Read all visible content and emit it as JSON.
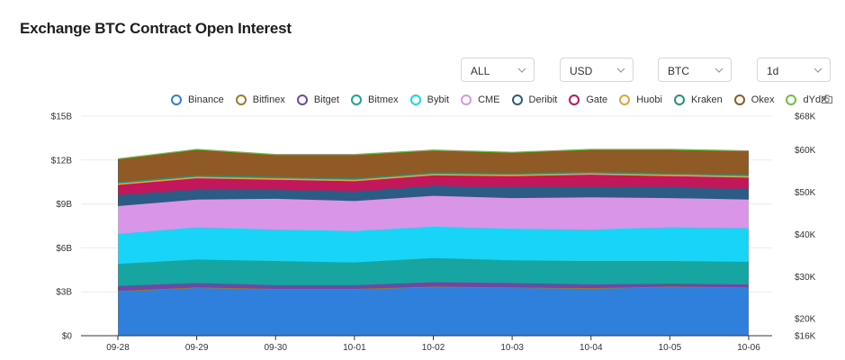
{
  "title": "Exchange BTC Contract Open Interest",
  "filters": [
    {
      "value": "ALL"
    },
    {
      "value": "USD"
    },
    {
      "value": "BTC"
    },
    {
      "value": "1d"
    }
  ],
  "icons": {
    "chevron": "chevron-down-icon",
    "camera": "camera-icon"
  },
  "chart_data": {
    "type": "area",
    "stacked": true,
    "categories": [
      "09-28",
      "09-29",
      "09-30",
      "10-01",
      "10-02",
      "10-03",
      "10-04",
      "10-05",
      "10-06"
    ],
    "y_left": {
      "ticks": [
        "$0",
        "$3B",
        "$6B",
        "$9B",
        "$12B",
        "$15B"
      ],
      "range": [
        0,
        15
      ],
      "unit": "B USD"
    },
    "y_right": {
      "ticks": [
        "$16K",
        "$20K",
        "$30K",
        "$40K",
        "$50K",
        "$60K",
        "$68K"
      ],
      "range": [
        16,
        68
      ],
      "unit": "K USD"
    },
    "legend_position": "top",
    "series": [
      {
        "name": "Binance",
        "color": "#2f7fdd",
        "values": [
          3.0,
          3.25,
          3.15,
          3.15,
          3.3,
          3.25,
          3.2,
          3.3,
          3.25
        ]
      },
      {
        "name": "Bitfinex",
        "color": "#a0782f",
        "values": [
          0.05,
          0.05,
          0.05,
          0.05,
          0.05,
          0.05,
          0.05,
          0.05,
          0.05
        ]
      },
      {
        "name": "Bitget",
        "color": "#6a4aa3",
        "values": [
          0.35,
          0.3,
          0.25,
          0.25,
          0.3,
          0.3,
          0.25,
          0.2,
          0.2
        ]
      },
      {
        "name": "Bitmex",
        "color": "#16a5a1",
        "values": [
          1.5,
          1.6,
          1.65,
          1.55,
          1.65,
          1.55,
          1.6,
          1.55,
          1.55
        ]
      },
      {
        "name": "Bybit",
        "color": "#18d4f6",
        "values": [
          2.05,
          2.2,
          2.15,
          2.15,
          2.15,
          2.15,
          2.15,
          2.3,
          2.3
        ]
      },
      {
        "name": "CME",
        "color": "#d996e8",
        "values": [
          1.9,
          1.9,
          2.1,
          2.05,
          2.1,
          2.1,
          2.2,
          2.0,
          1.95
        ]
      },
      {
        "name": "Deribit",
        "color": "#2c5c85",
        "values": [
          0.75,
          0.7,
          0.65,
          0.65,
          0.7,
          0.75,
          0.75,
          0.75,
          0.75
        ]
      },
      {
        "name": "Gate",
        "color": "#c2185b",
        "values": [
          0.7,
          0.75,
          0.65,
          0.7,
          0.7,
          0.75,
          0.8,
          0.75,
          0.75
        ]
      },
      {
        "name": "Huobi",
        "color": "#e8a13c",
        "values": [
          0.1,
          0.1,
          0.1,
          0.1,
          0.1,
          0.1,
          0.1,
          0.1,
          0.1
        ]
      },
      {
        "name": "Kraken",
        "color": "#2e8f7a",
        "values": [
          0.1,
          0.1,
          0.1,
          0.1,
          0.1,
          0.1,
          0.1,
          0.1,
          0.1
        ]
      },
      {
        "name": "Okex",
        "color": "#8f5a26",
        "values": [
          1.55,
          1.75,
          1.5,
          1.6,
          1.5,
          1.4,
          1.5,
          1.6,
          1.6
        ]
      },
      {
        "name": "dYdX",
        "color": "#6fbf4a",
        "values": [
          0.03,
          0.03,
          0.03,
          0.03,
          0.03,
          0.03,
          0.03,
          0.03,
          0.03
        ]
      }
    ]
  }
}
